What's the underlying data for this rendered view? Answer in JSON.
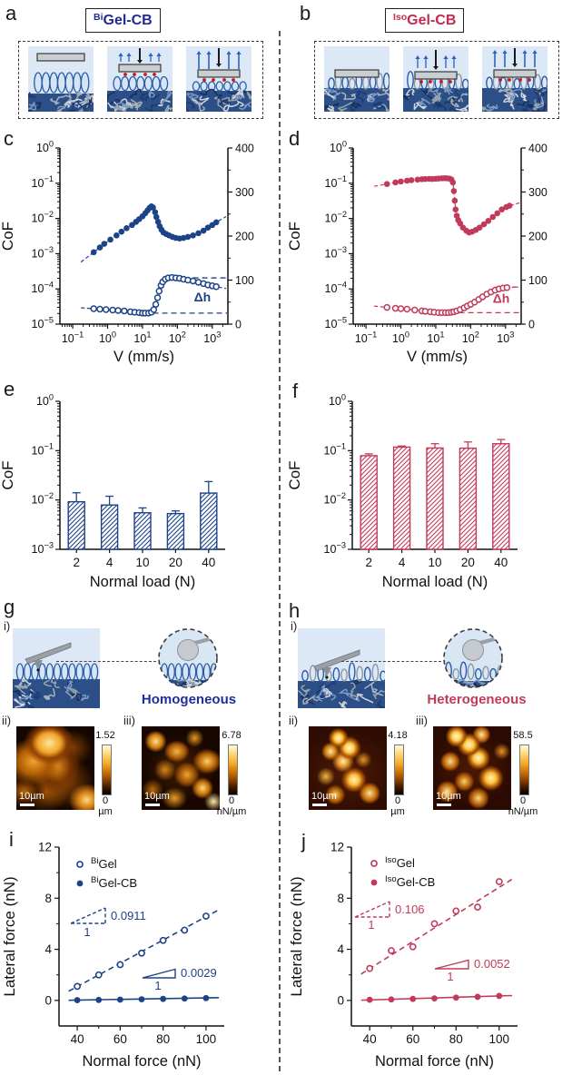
{
  "panels": {
    "a": {
      "letter": "a",
      "title_sup": "Bi",
      "title_main": "Gel-CB"
    },
    "b": {
      "letter": "b",
      "title_sup": "Iso",
      "title_main": "Gel-CB"
    },
    "c": {
      "letter": "c"
    },
    "d": {
      "letter": "d"
    },
    "e": {
      "letter": "e"
    },
    "f": {
      "letter": "f"
    },
    "g": {
      "letter": "g",
      "sub_i": "i)",
      "sub_ii": "ii)",
      "sub_iii": "iii)",
      "tag": "Homogeneous",
      "afm_ii": {
        "max": "1.52",
        "min": "0",
        "unit": "µm",
        "scalebar": "10µm"
      },
      "afm_iii": {
        "max": "6.78",
        "min": "0",
        "unit": "nN/µm",
        "scalebar": "10µm"
      }
    },
    "h": {
      "letter": "h",
      "sub_i": "i)",
      "sub_ii": "ii)",
      "sub_iii": "iii)",
      "tag": "Heterogeneous",
      "afm_ii": {
        "max": "4.18",
        "min": "0",
        "unit": "µm",
        "scalebar": "10µm"
      },
      "afm_iii": {
        "max": "58.5",
        "min": "0",
        "unit": "nN/µm",
        "scalebar": "10µm"
      }
    },
    "i": {
      "letter": "i"
    },
    "j": {
      "letter": "j"
    }
  },
  "colors": {
    "blue": "#1c4388",
    "red": "#c23a5a",
    "title_blue": "#232b93",
    "title_red": "#c22b50"
  },
  "chart_data": [
    {
      "id": "c",
      "type": "dual_log_scatter",
      "xlabel": "V (mm/s)",
      "ylabel": "CoF",
      "color": "#1c4388",
      "xlim": [
        0.043,
        2800
      ],
      "ylim_left": [
        1e-05,
        1
      ],
      "ylim_right": [
        0,
        400
      ],
      "xticks_exp": [
        -1,
        0,
        1,
        2,
        3
      ],
      "yticks_exp": [
        0,
        -1,
        -2,
        -3,
        -4,
        -5
      ],
      "yticks_right": [
        0,
        100,
        200,
        300,
        400
      ],
      "dashed_right": [
        {
          "value": 105,
          "from": 280
        },
        {
          "value": 25,
          "from": 20
        }
      ],
      "annotation": {
        "text": "Δh",
        "x": 520,
        "y": 52
      },
      "series": [
        {
          "name": "CoF",
          "axis": "left",
          "marker": "filled",
          "x": [
            0.4,
            0.6,
            0.8,
            1.2,
            1.8,
            2.5,
            3.5,
            5,
            6.5,
            8,
            10,
            12,
            14,
            16,
            18,
            20,
            23,
            25,
            28,
            31,
            35,
            40,
            48,
            58,
            72,
            90,
            115,
            150,
            200,
            280,
            400,
            560,
            750,
            1000,
            1300
          ],
          "y": [
            0.0011,
            0.0015,
            0.0019,
            0.0025,
            0.0033,
            0.0042,
            0.0053,
            0.0065,
            0.008,
            0.0095,
            0.0115,
            0.014,
            0.017,
            0.02,
            0.022,
            0.0205,
            0.015,
            0.011,
            0.008,
            0.006,
            0.0048,
            0.004,
            0.0036,
            0.0033,
            0.003,
            0.0028,
            0.0027,
            0.0028,
            0.003,
            0.0033,
            0.0038,
            0.0045,
            0.0055,
            0.0065,
            0.0078
          ]
        },
        {
          "name": "Δh",
          "axis": "right",
          "marker": "open",
          "x": [
            0.4,
            0.6,
            0.9,
            1.4,
            2,
            3,
            4.5,
            6,
            8,
            10,
            12,
            15,
            18,
            21,
            24,
            27,
            30,
            34,
            38,
            45,
            55,
            70,
            90,
            115,
            150,
            200,
            280,
            400,
            560,
            750,
            1000,
            1300
          ],
          "y": [
            35,
            34,
            33,
            32,
            31,
            30,
            28,
            27,
            26,
            25,
            25,
            25,
            27,
            33,
            45,
            60,
            75,
            88,
            96,
            102,
            105,
            106,
            105,
            104,
            102,
            100,
            98,
            95,
            92,
            89,
            87,
            85
          ]
        }
      ]
    },
    {
      "id": "d",
      "type": "dual_log_scatter",
      "xlabel": "V (mm/s)",
      "ylabel": "CoF",
      "color": "#c23a5a",
      "xlim": [
        0.043,
        2800
      ],
      "ylim_left": [
        1e-05,
        1
      ],
      "ylim_right": [
        0,
        400
      ],
      "xticks_exp": [
        -1,
        0,
        1,
        2,
        3
      ],
      "yticks_exp": [
        0,
        -1,
        -2,
        -3,
        -4,
        -5
      ],
      "yticks_right": [
        0,
        100,
        200,
        300,
        400
      ],
      "dashed_right": [
        {
          "value": 84,
          "from": 480
        },
        {
          "value": 26,
          "from": 14
        }
      ],
      "annotation": {
        "text": "Δh",
        "x": 750,
        "y": 48
      },
      "series": [
        {
          "name": "CoF",
          "axis": "left",
          "marker": "filled",
          "x": [
            0.4,
            0.7,
            1,
            1.5,
            2,
            3,
            4,
            5,
            6.5,
            8,
            10,
            12,
            15,
            18,
            21,
            25,
            28,
            31,
            33,
            35,
            37,
            40,
            44,
            50,
            60,
            75,
            90,
            110,
            140,
            180,
            240,
            320,
            430,
            580,
            780,
            1050,
            1300
          ],
          "y": [
            0.095,
            0.105,
            0.112,
            0.118,
            0.122,
            0.127,
            0.13,
            0.132,
            0.133,
            0.132,
            0.134,
            0.136,
            0.138,
            0.139,
            0.138,
            0.135,
            0.128,
            0.105,
            0.06,
            0.032,
            0.018,
            0.012,
            0.009,
            0.0072,
            0.0055,
            0.0045,
            0.004,
            0.0042,
            0.0047,
            0.0055,
            0.0068,
            0.0085,
            0.011,
            0.014,
            0.018,
            0.021,
            0.023
          ]
        },
        {
          "name": "Δh",
          "axis": "right",
          "marker": "open",
          "x": [
            0.4,
            0.7,
            1,
            1.5,
            2.5,
            4,
            5,
            7,
            9,
            12,
            15,
            19,
            23,
            28,
            33,
            40,
            50,
            65,
            80,
            100,
            130,
            170,
            220,
            290,
            380,
            500,
            650,
            850,
            1100
          ],
          "y": [
            38,
            36,
            35,
            34,
            32,
            30,
            29,
            28,
            27,
            26,
            26,
            26,
            26,
            27,
            28,
            30,
            33,
            37,
            41,
            45,
            50,
            56,
            62,
            68,
            73,
            77,
            80,
            82,
            83
          ]
        }
      ]
    },
    {
      "id": "e",
      "type": "bar_log",
      "xlabel": "Normal load (N)",
      "ylabel": "CoF",
      "color": "#1c4388",
      "ylim": [
        0.001,
        1
      ],
      "yticks_exp": [
        0,
        -1,
        -2,
        -3
      ],
      "categories": [
        "2",
        "4",
        "10",
        "20",
        "40"
      ],
      "values": [
        0.0092,
        0.0079,
        0.0055,
        0.0053,
        0.0138
      ],
      "errors": [
        0.0048,
        0.004,
        0.0014,
        0.0007,
        0.0098
      ]
    },
    {
      "id": "f",
      "type": "bar_log",
      "xlabel": "Normal load (N)",
      "ylabel": "CoF",
      "color": "#c23a5a",
      "ylim": [
        0.001,
        1
      ],
      "yticks_exp": [
        0,
        -1,
        -2,
        -3
      ],
      "categories": [
        "2",
        "4",
        "10",
        "20",
        "40"
      ],
      "values": [
        0.079,
        0.118,
        0.113,
        0.112,
        0.138
      ],
      "errors": [
        0.007,
        0.006,
        0.025,
        0.038,
        0.03
      ]
    },
    {
      "id": "i",
      "type": "scatter_linear",
      "xlabel": "Normal force (nN)",
      "ylabel": "Lateral force (nN)",
      "color": "#1c4388",
      "xlim": [
        31.5,
        108.5
      ],
      "ylim": [
        -2,
        12
      ],
      "xticks": [
        40,
        60,
        80,
        100
      ],
      "yticks": [
        0,
        4,
        8,
        12
      ],
      "series": [
        {
          "name": "BiGel",
          "label_sup": "Bi",
          "label_main": "Gel",
          "marker": "open",
          "x": [
            40,
            50,
            60,
            70,
            80,
            90,
            100
          ],
          "y": [
            1.1,
            2,
            2.8,
            3.7,
            4.7,
            5.5,
            6.6
          ],
          "fit": {
            "slope": 0.0911,
            "intercept": -2.56,
            "x1": 36,
            "x2": 106,
            "style": "dashed"
          }
        },
        {
          "name": "BiGel-CB",
          "label_sup": "Bi",
          "label_main": "Gel-CB",
          "marker": "filled",
          "x": [
            40,
            50,
            60,
            70,
            80,
            90,
            100
          ],
          "y": [
            0.02,
            0.04,
            0.06,
            0.09,
            0.12,
            0.15,
            0.18
          ],
          "fit": {
            "slope": 0.0029,
            "intercept": -0.09,
            "x1": 36,
            "x2": 106,
            "style": "solid"
          }
        }
      ],
      "slopes": [
        {
          "label": "0.0911",
          "run": "1"
        },
        {
          "label": "0.0029",
          "run": "1"
        }
      ]
    },
    {
      "id": "j",
      "type": "scatter_linear",
      "xlabel": "Normal force (nN)",
      "ylabel": "Lateral force (nN)",
      "color": "#c23a5a",
      "xlim": [
        31.5,
        108.5
      ],
      "ylim": [
        -2,
        12
      ],
      "xticks": [
        40,
        60,
        80,
        100
      ],
      "yticks": [
        0,
        4,
        8,
        12
      ],
      "series": [
        {
          "name": "IsoGel",
          "label_sup": "Iso",
          "label_main": "Gel",
          "marker": "open",
          "x": [
            40,
            50,
            60,
            70,
            80,
            90,
            100
          ],
          "y": [
            2.5,
            3.9,
            4.2,
            6,
            7,
            7.3,
            9.3
          ],
          "fit": {
            "slope": 0.106,
            "intercept": -1.75,
            "x1": 36,
            "x2": 106,
            "style": "dashed"
          }
        },
        {
          "name": "IsoGel-CB",
          "label_sup": "Iso",
          "label_main": "Gel-CB",
          "marker": "filled",
          "x": [
            40,
            50,
            60,
            70,
            80,
            90,
            100
          ],
          "y": [
            0.05,
            0.08,
            0.12,
            0.16,
            0.22,
            0.28,
            0.35
          ],
          "fit": {
            "slope": 0.0052,
            "intercept": -0.17,
            "x1": 36,
            "x2": 106,
            "style": "solid"
          }
        }
      ],
      "slopes": [
        {
          "label": "0.106",
          "run": "1"
        },
        {
          "label": "0.0052",
          "run": "1"
        }
      ]
    }
  ]
}
